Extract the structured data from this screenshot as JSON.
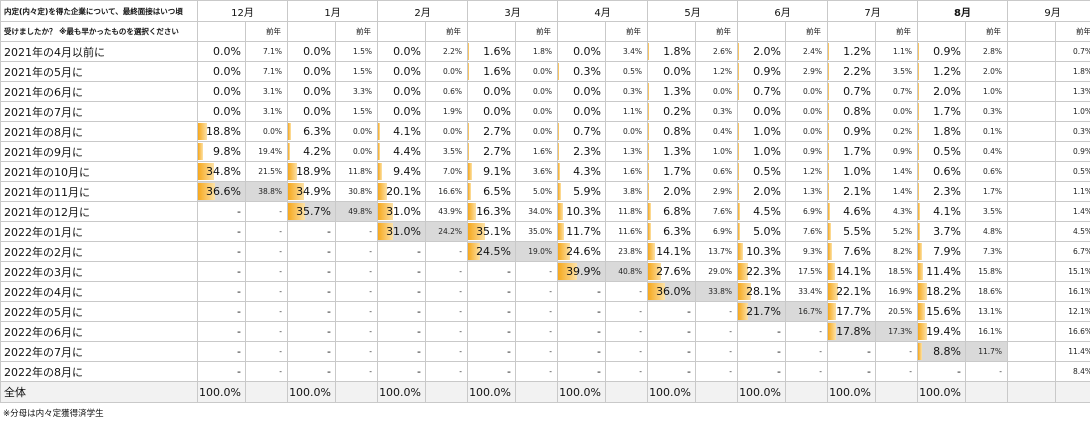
{
  "title_line1": "内定(内々定)を得た企業について、最終面接はいつ頃",
  "title_line2": "受けましたか？ ※最も早かったものを選択ください",
  "prev_label": "前年",
  "months": [
    "12月",
    "1月",
    "2月",
    "3月",
    "4月",
    "5月",
    "6月",
    "7月",
    "8月",
    "9月"
  ],
  "bold_month_index": 8,
  "colors": {
    "bar": "#f6a81e",
    "highlight": "#d9d9d9",
    "total_bg": "#f2f2f2"
  },
  "rows": [
    {
      "label": "2021年の4月以前に",
      "cells": [
        [
          "0.0%",
          "7.1%"
        ],
        [
          "0.0%",
          "1.5%"
        ],
        [
          "0.0%",
          "2.2%"
        ],
        [
          "1.6%",
          "1.8%"
        ],
        [
          "0.0%",
          "3.4%"
        ],
        [
          "1.8%",
          "2.6%"
        ],
        [
          "2.0%",
          "2.4%"
        ],
        [
          "1.2%",
          "1.1%"
        ],
        [
          "0.9%",
          "2.8%"
        ],
        [
          "",
          "0.7%"
        ]
      ]
    },
    {
      "label": "2021年の5月に",
      "cells": [
        [
          "0.0%",
          "7.1%"
        ],
        [
          "0.0%",
          "1.5%"
        ],
        [
          "0.0%",
          "0.0%"
        ],
        [
          "1.6%",
          "0.0%"
        ],
        [
          "0.3%",
          "0.5%"
        ],
        [
          "0.0%",
          "1.2%"
        ],
        [
          "0.9%",
          "2.9%"
        ],
        [
          "2.2%",
          "3.5%"
        ],
        [
          "1.2%",
          "2.0%"
        ],
        [
          "",
          "1.8%"
        ]
      ]
    },
    {
      "label": "2021年の6月に",
      "cells": [
        [
          "0.0%",
          "3.1%"
        ],
        [
          "0.0%",
          "3.3%"
        ],
        [
          "0.0%",
          "0.6%"
        ],
        [
          "0.0%",
          "0.0%"
        ],
        [
          "0.0%",
          "0.3%"
        ],
        [
          "1.3%",
          "0.0%"
        ],
        [
          "0.7%",
          "0.0%"
        ],
        [
          "0.7%",
          "0.7%"
        ],
        [
          "2.0%",
          "1.0%"
        ],
        [
          "",
          "1.3%"
        ]
      ]
    },
    {
      "label": "2021年の7月に",
      "cells": [
        [
          "0.0%",
          "3.1%"
        ],
        [
          "0.0%",
          "1.5%"
        ],
        [
          "0.0%",
          "1.9%"
        ],
        [
          "0.0%",
          "0.0%"
        ],
        [
          "0.0%",
          "1.1%"
        ],
        [
          "0.2%",
          "0.3%"
        ],
        [
          "0.0%",
          "0.0%"
        ],
        [
          "0.8%",
          "0.0%"
        ],
        [
          "1.7%",
          "0.3%"
        ],
        [
          "",
          "1.0%"
        ]
      ]
    },
    {
      "label": "2021年の8月に",
      "cells": [
        [
          "18.8%",
          "0.0%"
        ],
        [
          "6.3%",
          "0.0%"
        ],
        [
          "4.1%",
          "0.0%"
        ],
        [
          "2.7%",
          "0.0%"
        ],
        [
          "0.7%",
          "0.0%"
        ],
        [
          "0.8%",
          "0.4%"
        ],
        [
          "1.0%",
          "0.0%"
        ],
        [
          "0.9%",
          "0.2%"
        ],
        [
          "1.8%",
          "0.1%"
        ],
        [
          "",
          "0.3%"
        ]
      ]
    },
    {
      "label": "2021年の9月に",
      "cells": [
        [
          "9.8%",
          "19.4%"
        ],
        [
          "4.2%",
          "0.0%"
        ],
        [
          "4.4%",
          "3.5%"
        ],
        [
          "2.7%",
          "1.6%"
        ],
        [
          "2.3%",
          "1.3%"
        ],
        [
          "1.3%",
          "1.0%"
        ],
        [
          "1.0%",
          "0.9%"
        ],
        [
          "1.7%",
          "0.9%"
        ],
        [
          "0.5%",
          "0.4%"
        ],
        [
          "",
          "0.9%"
        ]
      ]
    },
    {
      "label": "2021年の10月に",
      "cells": [
        [
          "34.8%",
          "21.5%"
        ],
        [
          "18.9%",
          "11.8%"
        ],
        [
          "9.4%",
          "7.0%"
        ],
        [
          "9.1%",
          "3.6%"
        ],
        [
          "4.3%",
          "1.6%"
        ],
        [
          "1.7%",
          "0.6%"
        ],
        [
          "0.5%",
          "1.2%"
        ],
        [
          "1.0%",
          "1.4%"
        ],
        [
          "0.6%",
          "0.6%"
        ],
        [
          "",
          "0.5%"
        ]
      ]
    },
    {
      "label": "2021年の11月に",
      "cells": [
        [
          "36.6%",
          "38.8%"
        ],
        [
          "34.9%",
          "30.8%"
        ],
        [
          "20.1%",
          "16.6%"
        ],
        [
          "6.5%",
          "5.0%"
        ],
        [
          "5.9%",
          "3.8%"
        ],
        [
          "2.0%",
          "2.9%"
        ],
        [
          "2.0%",
          "1.3%"
        ],
        [
          "2.1%",
          "1.4%"
        ],
        [
          "2.3%",
          "1.7%"
        ],
        [
          "",
          "1.1%"
        ]
      ]
    },
    {
      "label": "2021年の12月に",
      "cells": [
        [
          "-",
          "-"
        ],
        [
          "35.7%",
          "49.8%"
        ],
        [
          "31.0%",
          "43.9%"
        ],
        [
          "16.3%",
          "34.0%"
        ],
        [
          "10.3%",
          "11.8%"
        ],
        [
          "6.8%",
          "7.6%"
        ],
        [
          "4.5%",
          "6.9%"
        ],
        [
          "4.6%",
          "4.3%"
        ],
        [
          "4.1%",
          "3.5%"
        ],
        [
          "",
          "1.4%"
        ]
      ]
    },
    {
      "label": "2022年の1月に",
      "cells": [
        [
          "-",
          "-"
        ],
        [
          "-",
          "-"
        ],
        [
          "31.0%",
          "24.2%"
        ],
        [
          "35.1%",
          "35.0%"
        ],
        [
          "11.7%",
          "11.6%"
        ],
        [
          "6.3%",
          "6.9%"
        ],
        [
          "5.0%",
          "7.6%"
        ],
        [
          "5.5%",
          "5.2%"
        ],
        [
          "3.7%",
          "4.8%"
        ],
        [
          "",
          "4.5%"
        ]
      ]
    },
    {
      "label": "2022年の2月に",
      "cells": [
        [
          "-",
          "-"
        ],
        [
          "-",
          "-"
        ],
        [
          "-",
          "-"
        ],
        [
          "24.5%",
          "19.0%"
        ],
        [
          "24.6%",
          "23.8%"
        ],
        [
          "14.1%",
          "13.7%"
        ],
        [
          "10.3%",
          "9.3%"
        ],
        [
          "7.6%",
          "8.2%"
        ],
        [
          "7.9%",
          "7.3%"
        ],
        [
          "",
          "6.7%"
        ]
      ]
    },
    {
      "label": "2022年の3月に",
      "cells": [
        [
          "-",
          "-"
        ],
        [
          "-",
          "-"
        ],
        [
          "-",
          "-"
        ],
        [
          "-",
          "-"
        ],
        [
          "39.9%",
          "40.8%"
        ],
        [
          "27.6%",
          "29.0%"
        ],
        [
          "22.3%",
          "17.5%"
        ],
        [
          "14.1%",
          "18.5%"
        ],
        [
          "11.4%",
          "15.8%"
        ],
        [
          "",
          "15.1%"
        ]
      ]
    },
    {
      "label": "2022年の4月に",
      "cells": [
        [
          "-",
          "-"
        ],
        [
          "-",
          "-"
        ],
        [
          "-",
          "-"
        ],
        [
          "-",
          "-"
        ],
        [
          "-",
          "-"
        ],
        [
          "36.0%",
          "33.8%"
        ],
        [
          "28.1%",
          "33.4%"
        ],
        [
          "22.1%",
          "16.9%"
        ],
        [
          "18.2%",
          "18.6%"
        ],
        [
          "",
          "16.1%"
        ]
      ]
    },
    {
      "label": "2022年の5月に",
      "cells": [
        [
          "-",
          "-"
        ],
        [
          "-",
          "-"
        ],
        [
          "-",
          "-"
        ],
        [
          "-",
          "-"
        ],
        [
          "-",
          "-"
        ],
        [
          "-",
          "-"
        ],
        [
          "21.7%",
          "16.7%"
        ],
        [
          "17.7%",
          "20.5%"
        ],
        [
          "15.6%",
          "13.1%"
        ],
        [
          "",
          "12.1%"
        ]
      ]
    },
    {
      "label": "2022年の6月に",
      "cells": [
        [
          "-",
          "-"
        ],
        [
          "-",
          "-"
        ],
        [
          "-",
          "-"
        ],
        [
          "-",
          "-"
        ],
        [
          "-",
          "-"
        ],
        [
          "-",
          "-"
        ],
        [
          "-",
          "-"
        ],
        [
          "17.8%",
          "17.3%"
        ],
        [
          "19.4%",
          "16.1%"
        ],
        [
          "",
          "16.6%"
        ]
      ]
    },
    {
      "label": "2022年の7月に",
      "cells": [
        [
          "-",
          "-"
        ],
        [
          "-",
          "-"
        ],
        [
          "-",
          "-"
        ],
        [
          "-",
          "-"
        ],
        [
          "-",
          "-"
        ],
        [
          "-",
          "-"
        ],
        [
          "-",
          "-"
        ],
        [
          "-",
          "-"
        ],
        [
          "8.8%",
          "11.7%"
        ],
        [
          "",
          "11.4%"
        ]
      ]
    },
    {
      "label": "2022年の8月に",
      "cells": [
        [
          "-",
          "-"
        ],
        [
          "-",
          "-"
        ],
        [
          "-",
          "-"
        ],
        [
          "-",
          "-"
        ],
        [
          "-",
          "-"
        ],
        [
          "-",
          "-"
        ],
        [
          "-",
          "-"
        ],
        [
          "-",
          "-"
        ],
        [
          "-",
          "-"
        ],
        [
          "",
          "8.4%"
        ]
      ]
    }
  ],
  "highlight_cells": [
    [
      7,
      0
    ],
    [
      8,
      1
    ],
    [
      9,
      2
    ],
    [
      10,
      3
    ],
    [
      11,
      4
    ],
    [
      12,
      5
    ],
    [
      13,
      6
    ],
    [
      14,
      7
    ],
    [
      15,
      8
    ]
  ],
  "total": {
    "label": "全体",
    "cells": [
      "100.0%",
      "100.0%",
      "100.0%",
      "100.0%",
      "100.0%",
      "100.0%",
      "100.0%",
      "100.0%",
      "100.0%",
      ""
    ]
  },
  "footnote": "※分母は内々定獲得済学生"
}
